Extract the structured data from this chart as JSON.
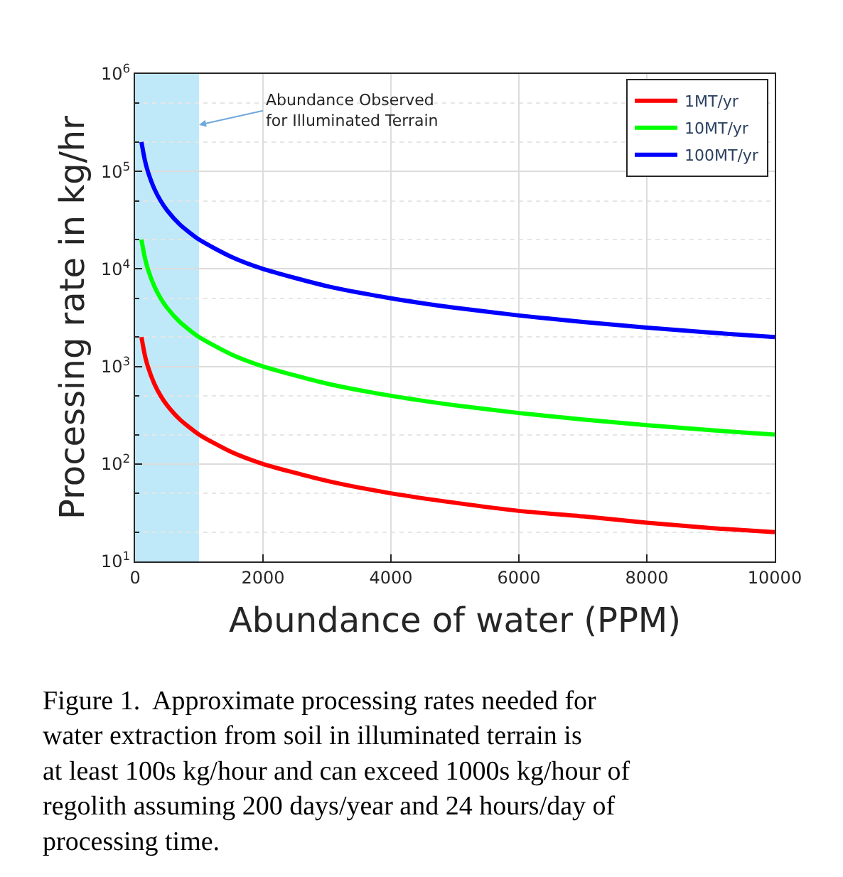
{
  "chart_data": {
    "type": "line",
    "xlabel": "Abundance of water (PPM)",
    "ylabel": "Processing rate in kg/hr",
    "x": [
      100,
      150,
      200,
      300,
      400,
      500,
      700,
      1000,
      1500,
      2000,
      3000,
      4000,
      5000,
      6000,
      7000,
      8000,
      9000,
      10000
    ],
    "series": [
      {
        "name": "1MT/yr",
        "color": "#ff0000",
        "values": [
          2000,
          1333,
          1000,
          667,
          500,
          400,
          286,
          200,
          133,
          100,
          67,
          50,
          40,
          33,
          29,
          25,
          22,
          20
        ]
      },
      {
        "name": "10MT/yr",
        "color": "#00ff00",
        "values": [
          20000,
          13333,
          10000,
          6667,
          5000,
          4000,
          2857,
          2000,
          1333,
          1000,
          667,
          500,
          400,
          333,
          286,
          250,
          222,
          200
        ]
      },
      {
        "name": "100MT/yr",
        "color": "#0000ff",
        "values": [
          200000,
          133333,
          100000,
          66667,
          50000,
          40000,
          28571,
          20000,
          13333,
          10000,
          6667,
          5000,
          4000,
          3333,
          2857,
          2500,
          2222,
          2000
        ]
      }
    ],
    "xlim": [
      0,
      10000
    ],
    "xticks": [
      0,
      2000,
      4000,
      6000,
      8000,
      10000
    ],
    "ylim": [
      10,
      1000000
    ],
    "yticks": [
      {
        "value": 10,
        "label": "10$^{1}$"
      },
      {
        "value": 100,
        "label": "10$^{2}$"
      },
      {
        "value": 1000,
        "label": "10$^{3}$"
      },
      {
        "value": 10000,
        "label": "10$^{4}$"
      },
      {
        "value": 100000,
        "label": "10$^{5}$"
      },
      {
        "value": 1000000,
        "label": "10$^{6}$"
      }
    ],
    "log": "y",
    "grid": true,
    "legend": "top right",
    "marker": "none",
    "line_style": "solid",
    "bands": [
      {
        "axis": "x",
        "from": 0,
        "to": 1000,
        "color": "#bfe9f8"
      }
    ],
    "annotations": [
      {
        "text": "Abundance Observed\nfor Illuminated Terrain",
        "x": 1000,
        "y": 300000
      },
      "Figure 1.  Approximate processing rates needed for water extraction from soil in illuminated terrain is at least 100s kg/hour and can exceed 1000s kg/hour of regolith assuming 200 days/year and 24 hours/day of processing time."
    ]
  }
}
